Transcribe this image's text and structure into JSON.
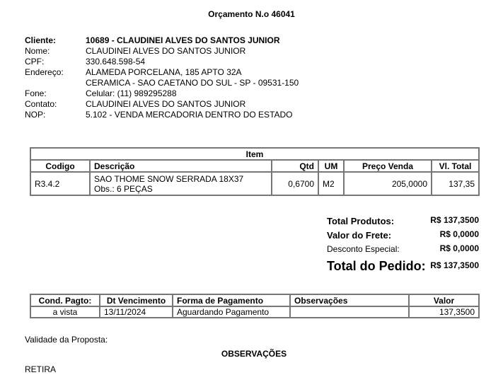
{
  "title": "Orçamento N.o 46041",
  "client": {
    "rows": [
      {
        "label": "Cliente:",
        "value": "10689 - CLAUDINEI ALVES DO SANTOS JUNIOR",
        "bold": true
      },
      {
        "label": "Nome:",
        "value": "CLAUDINEI ALVES DO SANTOS JUNIOR"
      },
      {
        "label": "CPF:",
        "value": "330.648.598-54"
      },
      {
        "label": "Endereço:",
        "value": "ALAMEDA PORCELANA, 185   APTO 32A"
      },
      {
        "label": "",
        "value": "CERAMICA - SAO CAETANO DO SUL - SP - 09531-150"
      },
      {
        "label": "Fone:",
        "value": "Celular: (11) 989295288"
      },
      {
        "label": "Contato:",
        "value": "CLAUDINEI ALVES DO SANTOS JUNIOR"
      },
      {
        "label": "NOP:",
        "value": "5.102 - VENDA MERCADORIA DENTRO DO ESTADO"
      }
    ]
  },
  "items": {
    "caption": "Item",
    "headers": [
      "Codigo",
      "Descrição",
      "Qtd",
      "UM",
      "Preço Venda",
      "Vl. Total"
    ],
    "rows": [
      {
        "codigo": "R3.4.2",
        "descricao": "SAO THOME SNOW SERRADA 18X37",
        "obs": "Obs.: 6 PEÇAS",
        "qtd": "0,6700",
        "um": "M2",
        "preco": "205,0000",
        "total": "137,35"
      }
    ]
  },
  "totals": {
    "produtos_label": "Total Produtos:",
    "produtos": "R$ 137,3500",
    "frete_label": "Valor do Frete:",
    "frete": "R$ 0,0000",
    "desconto_label": "Desconto Especial:",
    "desconto": "R$ 0,0000",
    "pedido_label": "Total do Pedido:",
    "pedido": "R$ 137,3500"
  },
  "payment": {
    "headers": [
      "Cond. Pagto:",
      "Dt Vencimento",
      "Forma de Pagamento",
      "Observações",
      "Valor"
    ],
    "row": [
      "a vista",
      "13/11/2024",
      "Aguardando Pagamento",
      "",
      "137,3500"
    ]
  },
  "validade_label": "Validade da Proposta:",
  "observacoes_title": "OBSERVAÇÕES",
  "observacoes_text": "RETIRA"
}
